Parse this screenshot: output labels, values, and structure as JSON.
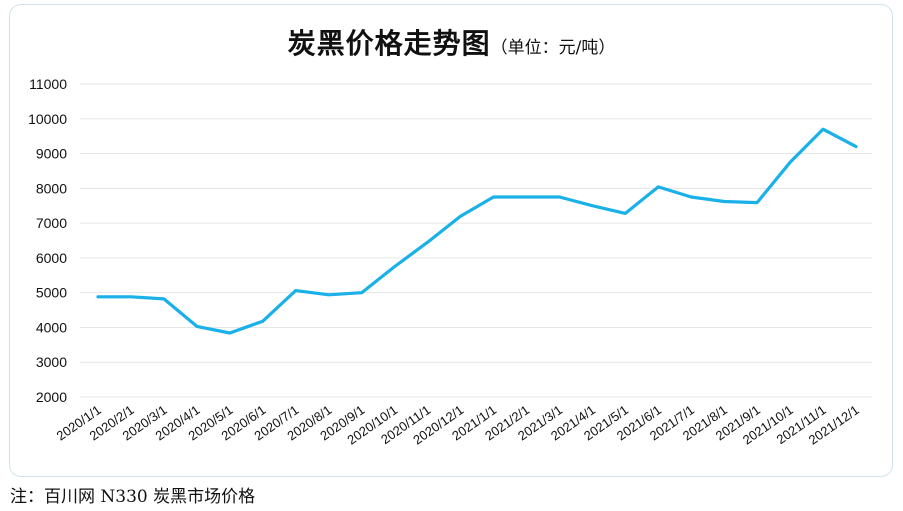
{
  "chart_data": {
    "type": "line",
    "title": "炭黑价格走势图",
    "subtitle": "（单位：元/吨）",
    "xlabel": "",
    "ylabel": "",
    "ylim": [
      2000,
      11000
    ],
    "yticks": [
      2000,
      3000,
      4000,
      5000,
      6000,
      7000,
      8000,
      9000,
      10000,
      11000
    ],
    "grid": true,
    "legend": "none",
    "categories": [
      "2020/1/1",
      "2020/2/1",
      "2020/3/1",
      "2020/4/1",
      "2020/5/1",
      "2020/6/1",
      "2020/7/1",
      "2020/8/1",
      "2020/9/1",
      "2020/10/1",
      "2020/11/1",
      "2020/12/1",
      "2021/1/1",
      "2021/2/1",
      "2021/3/1",
      "2021/4/1",
      "2021/5/1",
      "2021/6/1",
      "2021/7/1",
      "2021/8/1",
      "2021/9/1",
      "2021/10/1",
      "2021/11/1",
      "2021/12/1"
    ],
    "series": [
      {
        "color": "#1ab0e8",
        "values": [
          4880,
          4880,
          4820,
          4030,
          3840,
          4180,
          5060,
          4940,
          5000,
          5750,
          6450,
          7200,
          7750,
          7750,
          7750,
          7500,
          7280,
          8040,
          7750,
          7620,
          7590,
          8750,
          9700,
          9200
        ]
      }
    ]
  },
  "note": "注：百川网 N330 炭黑市场价格",
  "colors": {
    "line": "#1ab0e8",
    "grid": "#e6e6e6",
    "border": "#cfe3ec"
  }
}
